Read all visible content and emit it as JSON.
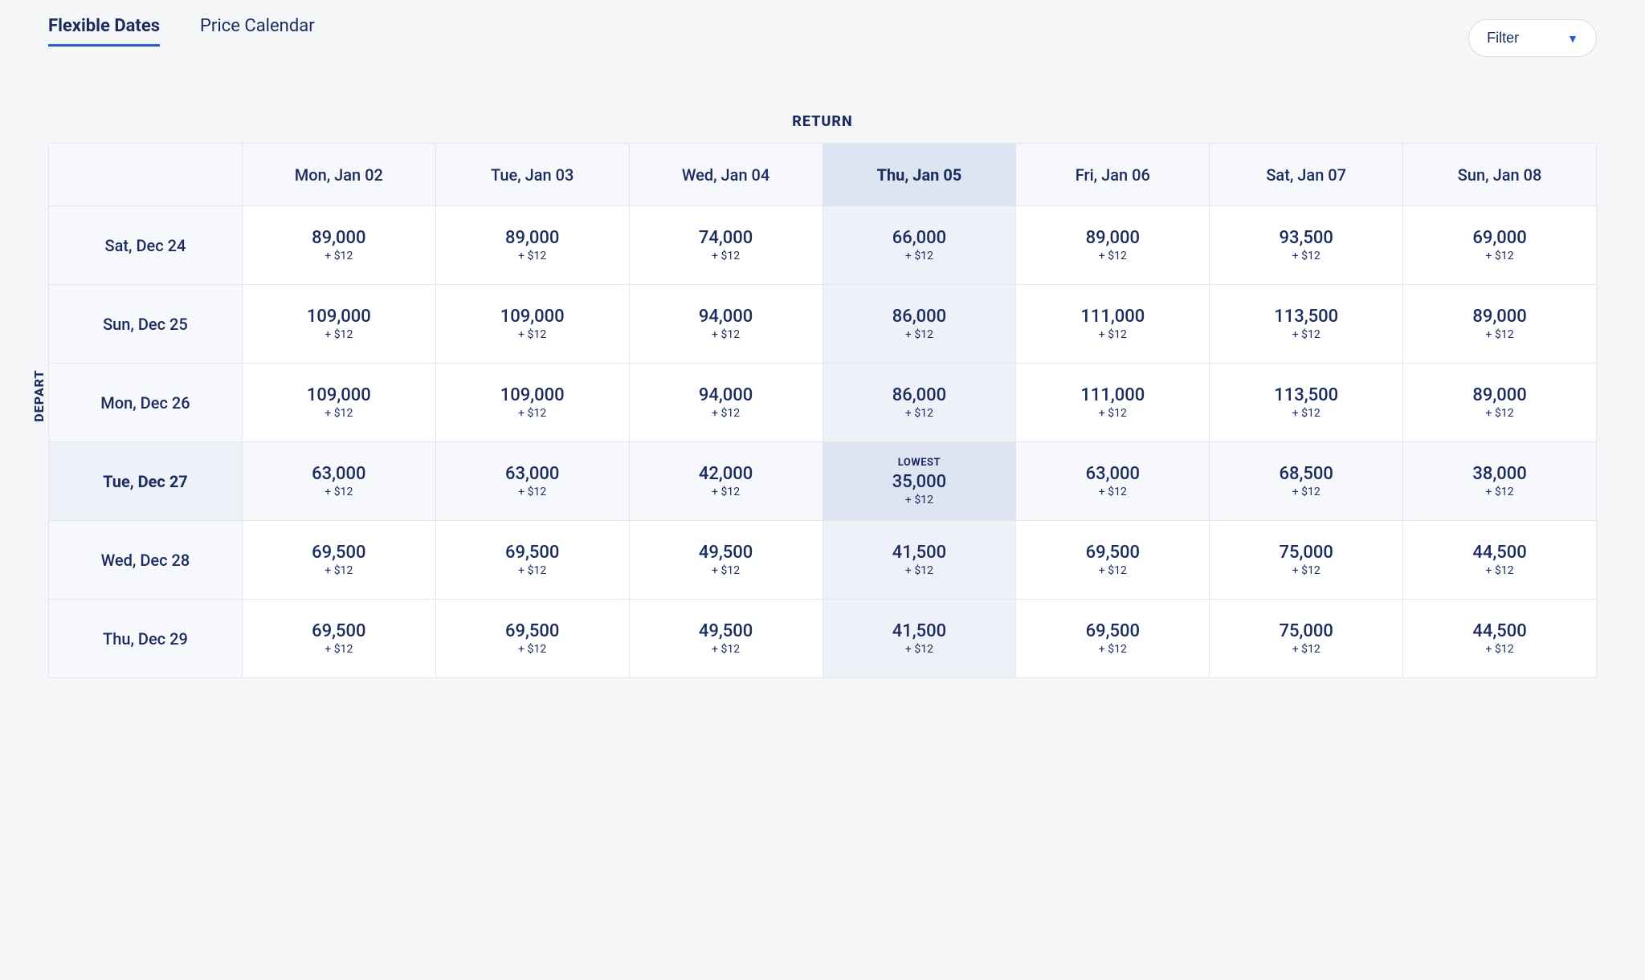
{
  "tabs": {
    "flexible": "Flexible Dates",
    "calendar": "Price Calendar",
    "active": "flexible"
  },
  "filter": {
    "label": "Filter"
  },
  "labels": {
    "return": "RETURN",
    "depart": "DEPART",
    "lowest": "LOWEST"
  },
  "columns": [
    {
      "label": "Mon, Jan 02",
      "selected": false
    },
    {
      "label": "Tue, Jan 03",
      "selected": false
    },
    {
      "label": "Wed, Jan 04",
      "selected": false
    },
    {
      "label": "Thu, Jan 05",
      "selected": true
    },
    {
      "label": "Fri, Jan 06",
      "selected": false
    },
    {
      "label": "Sat, Jan 07",
      "selected": false
    },
    {
      "label": "Sun, Jan 08",
      "selected": false
    }
  ],
  "rows": [
    {
      "label": "Sat, Dec 24",
      "selected": false,
      "cells": [
        {
          "points": "89,000",
          "fee": "+ $12"
        },
        {
          "points": "89,000",
          "fee": "+ $12"
        },
        {
          "points": "74,000",
          "fee": "+ $12"
        },
        {
          "points": "66,000",
          "fee": "+ $12"
        },
        {
          "points": "89,000",
          "fee": "+ $12"
        },
        {
          "points": "93,500",
          "fee": "+ $12"
        },
        {
          "points": "69,000",
          "fee": "+ $12"
        }
      ]
    },
    {
      "label": "Sun, Dec 25",
      "selected": false,
      "cells": [
        {
          "points": "109,000",
          "fee": "+ $12"
        },
        {
          "points": "109,000",
          "fee": "+ $12"
        },
        {
          "points": "94,000",
          "fee": "+ $12"
        },
        {
          "points": "86,000",
          "fee": "+ $12"
        },
        {
          "points": "111,000",
          "fee": "+ $12"
        },
        {
          "points": "113,500",
          "fee": "+ $12"
        },
        {
          "points": "89,000",
          "fee": "+ $12"
        }
      ]
    },
    {
      "label": "Mon, Dec 26",
      "selected": false,
      "cells": [
        {
          "points": "109,000",
          "fee": "+ $12"
        },
        {
          "points": "109,000",
          "fee": "+ $12"
        },
        {
          "points": "94,000",
          "fee": "+ $12"
        },
        {
          "points": "86,000",
          "fee": "+ $12"
        },
        {
          "points": "111,000",
          "fee": "+ $12"
        },
        {
          "points": "113,500",
          "fee": "+ $12"
        },
        {
          "points": "89,000",
          "fee": "+ $12"
        }
      ]
    },
    {
      "label": "Tue, Dec 27",
      "selected": true,
      "cells": [
        {
          "points": "63,000",
          "fee": "+ $12"
        },
        {
          "points": "63,000",
          "fee": "+ $12"
        },
        {
          "points": "42,000",
          "fee": "+ $12"
        },
        {
          "points": "35,000",
          "fee": "+ $12",
          "lowest": true
        },
        {
          "points": "63,000",
          "fee": "+ $12"
        },
        {
          "points": "68,500",
          "fee": "+ $12"
        },
        {
          "points": "38,000",
          "fee": "+ $12"
        }
      ]
    },
    {
      "label": "Wed, Dec 28",
      "selected": false,
      "cells": [
        {
          "points": "69,500",
          "fee": "+ $12"
        },
        {
          "points": "69,500",
          "fee": "+ $12"
        },
        {
          "points": "49,500",
          "fee": "+ $12"
        },
        {
          "points": "41,500",
          "fee": "+ $12"
        },
        {
          "points": "69,500",
          "fee": "+ $12"
        },
        {
          "points": "75,000",
          "fee": "+ $12"
        },
        {
          "points": "44,500",
          "fee": "+ $12"
        }
      ]
    },
    {
      "label": "Thu, Dec 29",
      "selected": false,
      "cells": [
        {
          "points": "69,500",
          "fee": "+ $12"
        },
        {
          "points": "69,500",
          "fee": "+ $12"
        },
        {
          "points": "49,500",
          "fee": "+ $12"
        },
        {
          "points": "41,500",
          "fee": "+ $12"
        },
        {
          "points": "69,500",
          "fee": "+ $12"
        },
        {
          "points": "75,000",
          "fee": "+ $12"
        },
        {
          "points": "44,500",
          "fee": "+ $12"
        }
      ]
    }
  ],
  "colors": {
    "page_bg": "#f5f6f8",
    "text_primary": "#1b2b5e",
    "accent_underline": "#2a5bd7",
    "cell_border": "#e4e6ee",
    "header_bg": "#f7f8fb",
    "selected_header_bg": "#dde4f2",
    "selected_row_cell_bg": "#f6f8fc",
    "selected_col_cell_bg": "#eef1f8",
    "intersection_bg": "#dde4f2",
    "filter_border": "#d8dbe4",
    "filter_bg": "#ffffff"
  }
}
